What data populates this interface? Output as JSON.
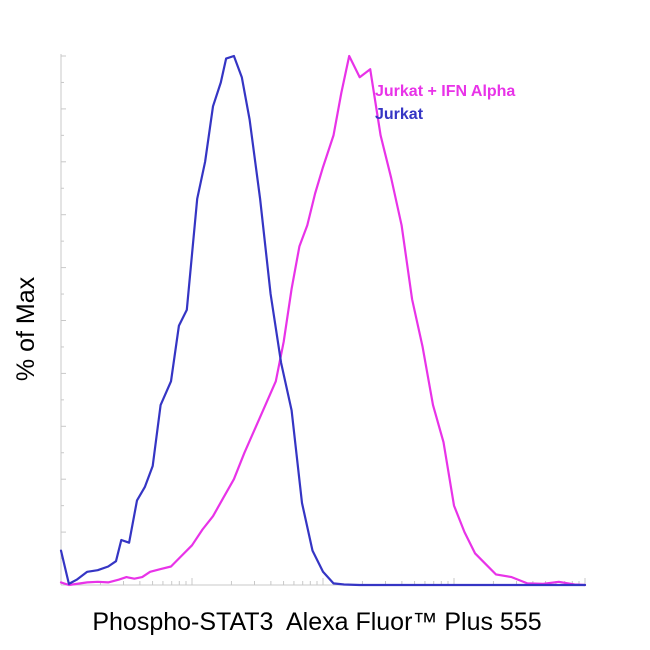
{
  "chart_data": {
    "type": "line",
    "title": "",
    "xlabel": "Phospho-STAT3  Alexa Fluor™ Plus 555",
    "ylabel": "% of Max",
    "xlim": [
      0,
      100
    ],
    "ylim": [
      0,
      100
    ],
    "grid": false,
    "legend_position": "top-right",
    "series": [
      {
        "name": "Jurkat + IFN Alpha",
        "color": "#e833e8",
        "x": [
          0,
          1.5,
          3,
          5,
          7,
          9,
          11,
          12.5,
          14,
          15.5,
          17,
          19,
          21,
          23,
          25,
          27,
          29,
          31,
          33,
          35,
          37,
          39,
          41,
          42.5,
          44,
          45.5,
          47,
          48.5,
          50,
          52,
          53.5,
          55,
          57,
          59,
          61,
          63,
          65,
          67,
          69,
          71,
          73,
          75,
          77,
          79,
          81,
          83,
          86,
          89,
          92,
          95,
          98,
          100
        ],
        "y": [
          0.5,
          0,
          0.2,
          0.5,
          0.6,
          0.5,
          1,
          1.5,
          1.2,
          1.5,
          2.5,
          3,
          3.5,
          5.5,
          7.5,
          10.5,
          13,
          16.5,
          20,
          25,
          29.5,
          34,
          38.5,
          46,
          56,
          64,
          68,
          74,
          79,
          85,
          93,
          100,
          96,
          97.5,
          85,
          77,
          68,
          54,
          45,
          34,
          27,
          15,
          10,
          6,
          4,
          2,
          1.5,
          0.3,
          0.2,
          0.6,
          0.1,
          0
        ]
      },
      {
        "name": "Jurkat",
        "color": "#3535c4",
        "x": [
          0,
          1.5,
          3,
          5,
          7,
          9,
          10.5,
          11.5,
          13,
          14.5,
          16,
          17.5,
          19,
          21,
          22.5,
          24,
          26,
          27.5,
          29,
          30.5,
          31.5,
          33,
          34.5,
          36,
          38,
          40,
          42,
          44,
          46,
          48,
          50,
          52,
          54,
          57,
          60,
          65,
          70,
          75,
          80,
          85,
          90,
          95,
          100
        ],
        "y": [
          6.5,
          0.2,
          1,
          2.5,
          2.8,
          3.5,
          4.5,
          8.5,
          8,
          16,
          18.5,
          22.5,
          34,
          38.5,
          49,
          52,
          73,
          80,
          90.5,
          95,
          99.5,
          100,
          96,
          88,
          73,
          55,
          42,
          33,
          15.5,
          6.5,
          2.5,
          0.3,
          0.1,
          0,
          0,
          0,
          0,
          0,
          0,
          0,
          0,
          0,
          0
        ]
      }
    ]
  }
}
